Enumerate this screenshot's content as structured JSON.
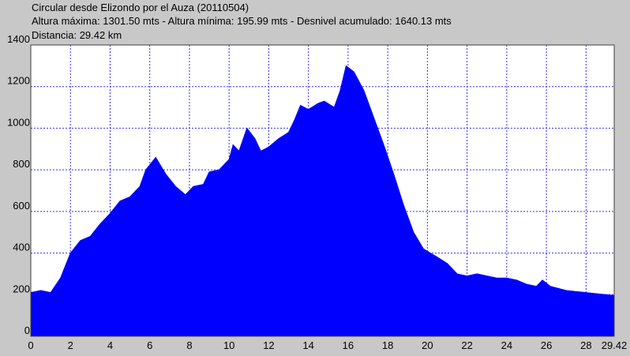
{
  "chart_data": {
    "type": "area",
    "title": "Circular desde Elizondo por el Auza (20110504)",
    "subtitle": "Altura máxima: 1301.50 mts - Altura mínima: 195.99 mts - Desnivel acumulado: 1640.13 mts",
    "annotation": "Distancia: 29.42 km",
    "x": [
      0,
      0.5,
      1.0,
      1.5,
      2.0,
      2.5,
      3.0,
      3.5,
      4.0,
      4.5,
      5.0,
      5.5,
      5.8,
      6.3,
      6.8,
      7.3,
      7.8,
      8.2,
      8.7,
      9.0,
      9.5,
      10.0,
      10.2,
      10.5,
      10.9,
      11.3,
      11.6,
      12.0,
      12.5,
      13.0,
      13.3,
      13.6,
      14.0,
      14.5,
      14.8,
      15.3,
      15.6,
      15.9,
      16.3,
      16.8,
      17.3,
      17.8,
      18.3,
      18.8,
      19.3,
      19.8,
      20.5,
      21.0,
      21.5,
      22.0,
      22.5,
      23.0,
      23.5,
      24.0,
      24.5,
      25.0,
      25.5,
      25.8,
      26.2,
      26.6,
      27.0,
      27.5,
      28.0,
      28.5,
      29.0,
      29.42
    ],
    "y": [
      210,
      220,
      210,
      280,
      400,
      460,
      480,
      540,
      590,
      650,
      670,
      720,
      800,
      860,
      780,
      720,
      680,
      720,
      730,
      790,
      800,
      850,
      920,
      890,
      1000,
      950,
      890,
      910,
      950,
      980,
      1040,
      1110,
      1090,
      1120,
      1130,
      1100,
      1180,
      1300,
      1270,
      1180,
      1050,
      920,
      780,
      630,
      500,
      420,
      380,
      350,
      300,
      290,
      300,
      290,
      280,
      280,
      270,
      250,
      240,
      270,
      240,
      230,
      220,
      215,
      210,
      205,
      200,
      196
    ],
    "color": "#0000ff",
    "xlim": [
      0,
      29.42
    ],
    "xticks": [
      0,
      2,
      4,
      6,
      8,
      10,
      12,
      14,
      16,
      18,
      20,
      22,
      24,
      26,
      28,
      29.42
    ],
    "ylim": [
      0,
      1400
    ],
    "yticks": [
      0,
      200,
      400,
      600,
      800,
      1000,
      1200,
      1400
    ],
    "grid": true
  }
}
